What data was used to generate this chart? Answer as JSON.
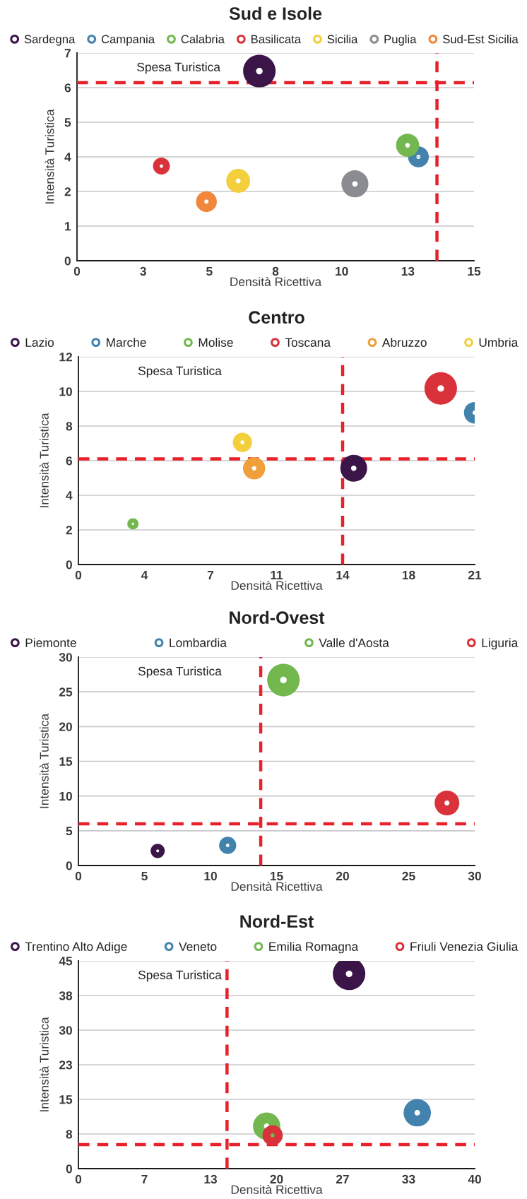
{
  "chart_data": [
    {
      "type": "bubble",
      "title": "Sud e Isole",
      "xlabel": "Densità Ricettiva",
      "ylabel": "Intensità Turistica",
      "annotations": [
        "Spesa Turistica"
      ],
      "marker": "circle",
      "legend": "top",
      "grid": "y",
      "xlim": [
        0,
        15
      ],
      "xticks": [
        0,
        {
          "value": 2.5,
          "label": "3"
        },
        5,
        {
          "value": 7.5,
          "label": "8"
        },
        10,
        {
          "value": 12.5,
          "label": "13"
        },
        15
      ],
      "ylim": [
        0,
        7
      ],
      "yticks": [
        0,
        {
          "value": 1.1667,
          "label": "1"
        },
        {
          "value": 2.3333,
          "label": "2"
        },
        {
          "value": 3.5,
          "label": "4"
        },
        {
          "value": 4.6667,
          "label": "5"
        },
        {
          "value": 5.8333,
          "label": "6"
        },
        7
      ],
      "ref_lines": [
        {
          "axis": "y",
          "value": 6.0,
          "color": "#e8202a",
          "line_style": "dashed"
        },
        {
          "axis": "x",
          "value": 13.6,
          "color": "#e8202a",
          "line_style": "dashed"
        }
      ],
      "series": [
        {
          "name": "Sardegna",
          "color": "#3b1448",
          "x": [
            6.89
          ],
          "values": [
            6.39
          ],
          "sizes": [
            1
          ]
        },
        {
          "name": "Campania",
          "color": "#4282ad",
          "x": [
            12.9
          ],
          "values": [
            3.5
          ],
          "sizes": [
            0.41
          ]
        },
        {
          "name": "Calabria",
          "color": "#72b84f",
          "x": [
            12.49
          ],
          "values": [
            3.89
          ],
          "sizes": [
            0.51
          ]
        },
        {
          "name": "Basilicata",
          "color": "#d9323a",
          "x": [
            3.19
          ],
          "values": [
            3.19
          ],
          "sizes": [
            0.27
          ]
        },
        {
          "name": "Sicilia",
          "color": "#f2cf3b",
          "x": [
            6.09
          ],
          "values": [
            2.69
          ],
          "sizes": [
            0.54
          ]
        },
        {
          "name": "Puglia",
          "color": "#8a8c91",
          "x": [
            10.5
          ],
          "values": [
            2.59
          ],
          "sizes": [
            0.69
          ]
        },
        {
          "name": "Sud-Est Sicilia",
          "color": "#f0873a",
          "x": [
            4.89
          ],
          "values": [
            1.99
          ],
          "sizes": [
            0.41
          ]
        }
      ]
    },
    {
      "type": "bubble",
      "title": "Centro",
      "xlabel": "Densità Ricettiva",
      "ylabel": "Intensità Turistica",
      "annotations": [
        "Spesa Turistica"
      ],
      "marker": "circle",
      "legend": "top",
      "grid": "y",
      "xlim": [
        0,
        21
      ],
      "xticks": [
        0,
        {
          "value": 3.5,
          "label": "4"
        },
        7,
        {
          "value": 10.5,
          "label": "11"
        },
        14,
        {
          "value": 17.5,
          "label": "18"
        },
        21
      ],
      "ylim": [
        0,
        12
      ],
      "yticks": [
        0,
        2,
        4,
        6,
        8,
        10,
        12
      ],
      "ref_lines": [
        {
          "axis": "y",
          "value": 6.1,
          "color": "#e8202a",
          "line_style": "dashed"
        },
        {
          "axis": "x",
          "value": 14.0,
          "color": "#e8202a",
          "line_style": "dashed"
        }
      ],
      "series": [
        {
          "name": "Lazio",
          "color": "#3b1448",
          "x": [
            14.59
          ],
          "values": [
            5.56
          ],
          "sizes": [
            0.68
          ]
        },
        {
          "name": "Marche",
          "color": "#4282ad",
          "x": [
            21.0
          ],
          "values": [
            8.77
          ],
          "sizes": [
            0.44
          ]
        },
        {
          "name": "Molise",
          "color": "#72b84f",
          "x": [
            2.89
          ],
          "values": [
            2.35
          ],
          "sizes": [
            0.12
          ]
        },
        {
          "name": "Toscana",
          "color": "#d9323a",
          "x": [
            19.2
          ],
          "values": [
            10.17
          ],
          "sizes": [
            1
          ]
        },
        {
          "name": "Abruzzo",
          "color": "#f0a03a",
          "x": [
            9.31
          ],
          "values": [
            5.56
          ],
          "sizes": [
            0.47
          ]
        },
        {
          "name": "Umbria",
          "color": "#f2cf3b",
          "x": [
            8.69
          ],
          "values": [
            7.06
          ],
          "sizes": [
            0.35
          ]
        }
      ]
    },
    {
      "type": "bubble",
      "title": "Nord-Ovest",
      "xlabel": "Densità Ricettiva",
      "ylabel": "Intensità Turistica",
      "annotations": [
        "Spesa Turistica"
      ],
      "marker": "circle",
      "legend": "top",
      "grid": "y",
      "xlim": [
        0,
        30
      ],
      "xticks": [
        0,
        5,
        10,
        15,
        20,
        25,
        30
      ],
      "ylim": [
        0,
        30
      ],
      "yticks": [
        0,
        5,
        10,
        15,
        20,
        25,
        30
      ],
      "ref_lines": [
        {
          "axis": "y",
          "value": 6.0,
          "color": "#e8202a",
          "line_style": "dashed"
        },
        {
          "axis": "x",
          "value": 13.8,
          "color": "#e8202a",
          "line_style": "dashed"
        }
      ],
      "series": [
        {
          "name": "Piemonte",
          "color": "#3b1448",
          "x": [
            6.0
          ],
          "values": [
            2.1
          ],
          "sizes": [
            0.19
          ]
        },
        {
          "name": "Lombardia",
          "color": "#4282ad",
          "x": [
            11.3
          ],
          "values": [
            2.9
          ],
          "sizes": [
            0.28
          ]
        },
        {
          "name": "Valle d'Aosta",
          "color": "#72b84f",
          "x": [
            15.52
          ],
          "values": [
            26.7
          ],
          "sizes": [
            1
          ]
        },
        {
          "name": "Liguria",
          "color": "#d9323a",
          "x": [
            27.9
          ],
          "values": [
            9.0
          ],
          "sizes": [
            0.58
          ]
        }
      ]
    },
    {
      "type": "bubble",
      "title": "Nord-Est",
      "xlabel": "Densità Ricettiva",
      "ylabel": "Intensità Turistica",
      "annotations": [
        "Spesa Turistica"
      ],
      "marker": "circle",
      "legend": "top",
      "grid": "y",
      "xlim": [
        0,
        40
      ],
      "xticks": [
        0,
        {
          "value": 6.6667,
          "label": "7"
        },
        {
          "value": 13.3333,
          "label": "13"
        },
        20,
        {
          "value": 26.6667,
          "label": "27"
        },
        {
          "value": 33.3333,
          "label": "33"
        },
        40
      ],
      "ylim": [
        0,
        45
      ],
      "yticks": [
        0,
        {
          "value": 7.5,
          "label": "8"
        },
        15,
        {
          "value": 22.5,
          "label": "23"
        },
        30,
        {
          "value": 37.5,
          "label": "38"
        },
        45
      ],
      "ref_lines": [
        {
          "axis": "y",
          "value": 5.2,
          "color": "#e8202a",
          "line_style": "dashed"
        },
        {
          "axis": "x",
          "value": 15.0,
          "color": "#e8202a",
          "line_style": "dashed"
        }
      ],
      "series": [
        {
          "name": "Trentino Alto Adige",
          "color": "#3b1448",
          "x": [
            27.32
          ],
          "values": [
            42.2
          ],
          "sizes": [
            1
          ]
        },
        {
          "name": "Veneto",
          "color": "#4282ad",
          "x": [
            34.2
          ],
          "values": [
            12.1
          ],
          "sizes": [
            0.71
          ]
        },
        {
          "name": "Emilia Romagna",
          "color": "#72b84f",
          "x": [
            19.0
          ],
          "values": [
            9.2
          ],
          "sizes": [
            0.71
          ]
        },
        {
          "name": "Friuli Venezia Giulia",
          "color": "#d9323a",
          "x": [
            19.6
          ],
          "values": [
            7.2
          ],
          "sizes": [
            0.39
          ]
        }
      ]
    }
  ]
}
